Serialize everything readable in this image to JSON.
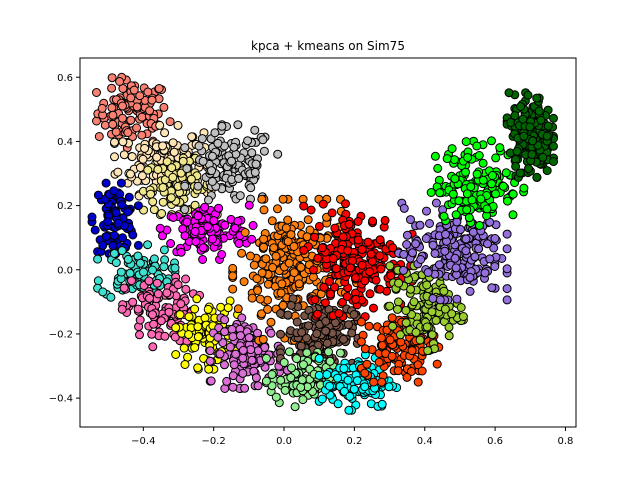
{
  "chart_data": {
    "type": "scatter",
    "title": "kpca + kmeans on Sim75",
    "xlabel": "",
    "ylabel": "",
    "xlim": [
      -0.58,
      0.83
    ],
    "ylim": [
      -0.49,
      0.66
    ],
    "xticks": [
      -0.4,
      -0.2,
      0.0,
      0.2,
      0.4,
      0.6,
      0.8
    ],
    "yticks": [
      -0.4,
      -0.2,
      0.0,
      0.2,
      0.4,
      0.6
    ],
    "xtick_labels": [
      "−0.4",
      "−0.2",
      "0.0",
      "0.2",
      "0.4",
      "0.6",
      "0.8"
    ],
    "ytick_labels": [
      "−0.4",
      "−0.2",
      "0.0",
      "0.2",
      "0.4",
      "0.6"
    ],
    "grid": false,
    "legend": "none",
    "marker_edge_color": "#000000",
    "clusters": [
      {
        "color": "#fa8072",
        "center": [
          -0.43,
          0.49
        ],
        "spread": [
          0.05,
          0.05
        ],
        "n": 110
      },
      {
        "color": "#ffe4b5",
        "center": [
          -0.35,
          0.34
        ],
        "spread": [
          0.06,
          0.05
        ],
        "n": 140
      },
      {
        "color": "#f0e68c",
        "center": [
          -0.3,
          0.26
        ],
        "spread": [
          0.05,
          0.04
        ],
        "n": 90
      },
      {
        "color": "#c0c0c0",
        "center": [
          -0.15,
          0.32
        ],
        "spread": [
          0.06,
          0.06
        ],
        "n": 130
      },
      {
        "color": "#0000cd",
        "center": [
          -0.48,
          0.16
        ],
        "spread": [
          0.03,
          0.05
        ],
        "n": 90
      },
      {
        "color": "#ff00ff",
        "center": [
          -0.22,
          0.12
        ],
        "spread": [
          0.06,
          0.04
        ],
        "n": 130
      },
      {
        "color": "#40e0d0",
        "center": [
          -0.42,
          -0.01
        ],
        "spread": [
          0.05,
          0.04
        ],
        "n": 90
      },
      {
        "color": "#ff69b4",
        "center": [
          -0.35,
          -0.13
        ],
        "spread": [
          0.05,
          0.05
        ],
        "n": 110
      },
      {
        "color": "#ffff00",
        "center": [
          -0.22,
          -0.2
        ],
        "spread": [
          0.04,
          0.05
        ],
        "n": 100
      },
      {
        "color": "#da70d6",
        "center": [
          -0.1,
          -0.26
        ],
        "spread": [
          0.05,
          0.05
        ],
        "n": 120
      },
      {
        "color": "#ff7f0e",
        "center": [
          0.03,
          0.0
        ],
        "spread": [
          0.08,
          0.1
        ],
        "n": 260
      },
      {
        "color": "#795548",
        "center": [
          0.1,
          -0.2
        ],
        "spread": [
          0.05,
          0.05
        ],
        "n": 140
      },
      {
        "color": "#90ee90",
        "center": [
          0.06,
          -0.34
        ],
        "spread": [
          0.05,
          0.04
        ],
        "n": 110
      },
      {
        "color": "#00ffff",
        "center": [
          0.21,
          -0.35
        ],
        "spread": [
          0.05,
          0.04
        ],
        "n": 110
      },
      {
        "color": "#ff0000",
        "center": [
          0.21,
          0.03
        ],
        "spread": [
          0.07,
          0.08
        ],
        "n": 200
      },
      {
        "color": "#ff4500",
        "center": [
          0.33,
          -0.24
        ],
        "spread": [
          0.05,
          0.05
        ],
        "n": 120
      },
      {
        "color": "#9acd32",
        "center": [
          0.4,
          -0.12
        ],
        "spread": [
          0.05,
          0.06
        ],
        "n": 120
      },
      {
        "color": "#9370db",
        "center": [
          0.48,
          0.06
        ],
        "spread": [
          0.07,
          0.07
        ],
        "n": 200
      },
      {
        "color": "#00ff00",
        "center": [
          0.55,
          0.27
        ],
        "spread": [
          0.06,
          0.06
        ],
        "n": 160
      },
      {
        "color": "#006400",
        "center": [
          0.7,
          0.42
        ],
        "spread": [
          0.03,
          0.06
        ],
        "n": 200
      }
    ]
  }
}
